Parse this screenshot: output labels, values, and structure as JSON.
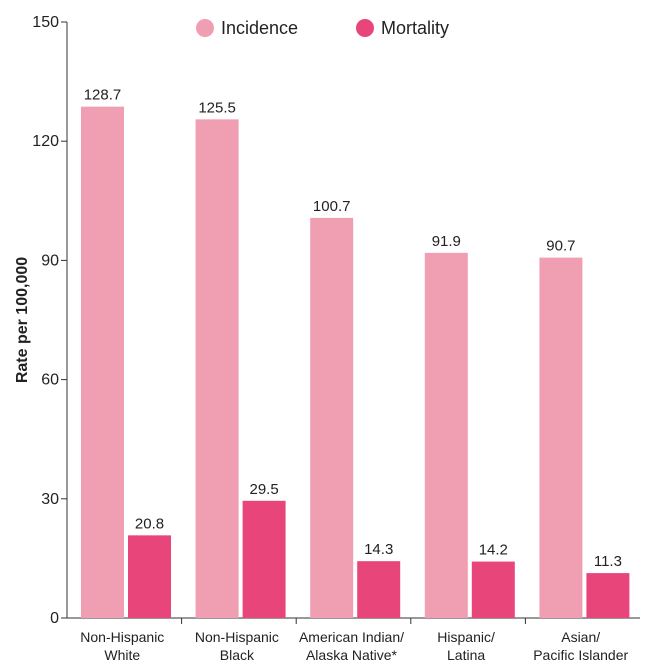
{
  "chart_data": {
    "type": "bar",
    "categories": [
      [
        "Non-Hispanic",
        "White"
      ],
      [
        "Non-Hispanic",
        "Black"
      ],
      [
        "American Indian/",
        "Alaska Native*"
      ],
      [
        "Hispanic/",
        "Latina"
      ],
      [
        "Asian/",
        "Pacific Islander"
      ]
    ],
    "series": [
      {
        "name": "Incidence",
        "color": "#f09fb2",
        "values": [
          128.7,
          125.5,
          100.7,
          91.9,
          90.7
        ]
      },
      {
        "name": "Mortality",
        "color": "#e8457a",
        "values": [
          20.8,
          29.5,
          14.3,
          14.2,
          11.3
        ]
      }
    ],
    "value_labels": [
      [
        "128.7",
        "125.5",
        "100.7",
        "91.9",
        "90.7"
      ],
      [
        "20.8",
        "29.5",
        "14.3",
        "14.2",
        "11.3"
      ]
    ],
    "ylabel": "Rate per 100,000",
    "ylim": [
      0,
      150
    ],
    "yticks": [
      0,
      30,
      60,
      90,
      120,
      150
    ],
    "ytick_labels": [
      "0",
      "30",
      "60",
      "90",
      "120",
      "150"
    ],
    "legend_position": "top",
    "grid": false
  }
}
